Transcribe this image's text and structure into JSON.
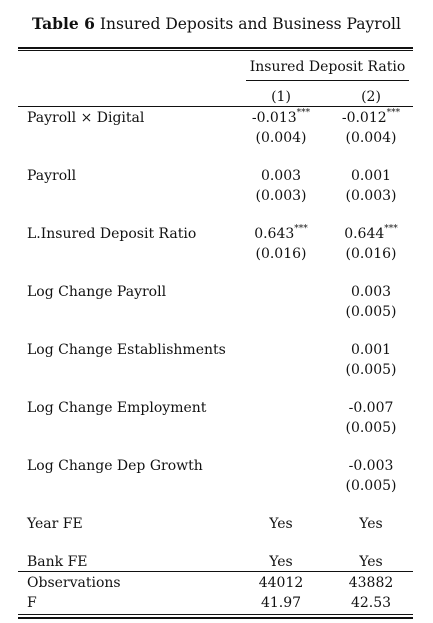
{
  "caption": {
    "label": "Table 6",
    "title": "Insured Deposits and Business Payroll"
  },
  "header": {
    "group": "Insured Deposit Ratio",
    "col1": "(1)",
    "col2": "(2)"
  },
  "rows": [
    {
      "label": "Payroll × Digital",
      "c1": "-0.013",
      "c1_stars": "***",
      "c1_se": "(0.004)",
      "c2": "-0.012",
      "c2_stars": "***",
      "c2_se": "(0.004)"
    },
    {
      "label": "Payroll",
      "c1": "0.003",
      "c1_stars": "",
      "c1_se": "(0.003)",
      "c2": "0.001",
      "c2_stars": "",
      "c2_se": "(0.003)"
    },
    {
      "label": "L.Insured Deposit Ratio",
      "c1": "0.643",
      "c1_stars": "***",
      "c1_se": "(0.016)",
      "c2": "0.644",
      "c2_stars": "***",
      "c2_se": "(0.016)"
    },
    {
      "label": "Log Change Payroll",
      "c1": "",
      "c1_stars": "",
      "c1_se": "",
      "c2": "0.003",
      "c2_stars": "",
      "c2_se": "(0.005)"
    },
    {
      "label": "Log Change Establishments",
      "c1": "",
      "c1_stars": "",
      "c1_se": "",
      "c2": "0.001",
      "c2_stars": "",
      "c2_se": "(0.005)"
    },
    {
      "label": "Log Change Employment",
      "c1": "",
      "c1_stars": "",
      "c1_se": "",
      "c2": "-0.007",
      "c2_stars": "",
      "c2_se": "(0.005)"
    },
    {
      "label": "Log Change Dep Growth",
      "c1": "",
      "c1_stars": "",
      "c1_se": "",
      "c2": "-0.003",
      "c2_stars": "",
      "c2_se": "(0.005)"
    }
  ],
  "fixed_effects": [
    {
      "label": "Year FE",
      "c1": "Yes",
      "c2": "Yes"
    },
    {
      "label": "Bank FE",
      "c1": "Yes",
      "c2": "Yes"
    }
  ],
  "stats": [
    {
      "label": "Observations",
      "c1": "44012",
      "c2": "43882"
    },
    {
      "label": "F",
      "c1": "41.97",
      "c2": "42.53"
    }
  ]
}
